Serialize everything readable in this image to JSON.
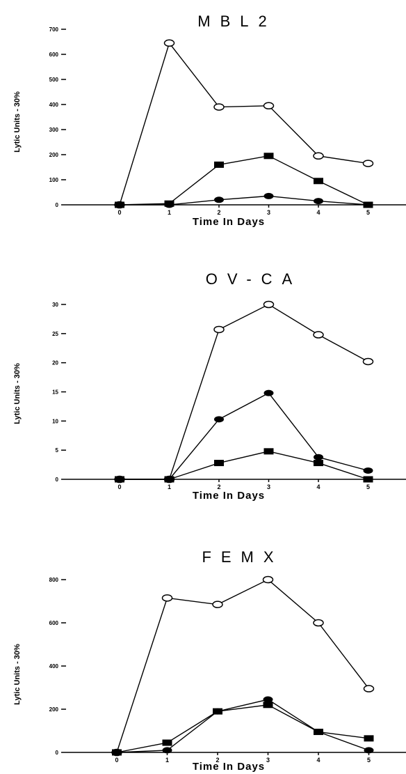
{
  "chart_data": [
    {
      "type": "line",
      "title": "MBL2",
      "xlabel": "Time In Days",
      "ylabel": "Lytic Units - 30%",
      "x": [
        0,
        1,
        2,
        3,
        4,
        5
      ],
      "ylim": [
        0,
        700
      ],
      "yticks": [
        0,
        100,
        200,
        300,
        400,
        500,
        600,
        700
      ],
      "grid": false,
      "series": [
        {
          "marker": "open-circle",
          "values": [
            0,
            645,
            390,
            395,
            195,
            165
          ]
        },
        {
          "marker": "filled-square",
          "values": [
            0,
            5,
            160,
            195,
            95,
            0
          ]
        },
        {
          "marker": "filled-circle",
          "values": [
            0,
            0,
            20,
            35,
            15,
            0
          ]
        }
      ]
    },
    {
      "type": "line",
      "title": "OV-CA",
      "xlabel": "Time In Days",
      "ylabel": "Lytic Units - 30%",
      "x": [
        0,
        1,
        2,
        3,
        4,
        5
      ],
      "ylim": [
        0,
        30
      ],
      "yticks": [
        0,
        5,
        10,
        15,
        20,
        25,
        30
      ],
      "grid": false,
      "series": [
        {
          "marker": "open-circle",
          "values": [
            0,
            0,
            25.7,
            30,
            24.8,
            20.2
          ]
        },
        {
          "marker": "filled-circle",
          "values": [
            0,
            0,
            10.3,
            14.8,
            3.8,
            1.5
          ]
        },
        {
          "marker": "filled-square",
          "values": [
            0,
            0,
            2.8,
            4.8,
            2.8,
            0
          ]
        }
      ]
    },
    {
      "type": "line",
      "title": "FEMX",
      "xlabel": "Time In Days",
      "ylabel": "Lytic Units - 30%",
      "x": [
        0,
        1,
        2,
        3,
        4,
        5
      ],
      "ylim": [
        0,
        800
      ],
      "yticks": [
        0,
        200,
        400,
        600,
        800
      ],
      "grid": false,
      "series": [
        {
          "marker": "open-circle",
          "values": [
            0,
            715,
            685,
            800,
            600,
            295
          ]
        },
        {
          "marker": "filled-circle",
          "values": [
            0,
            10,
            190,
            245,
            95,
            10
          ]
        },
        {
          "marker": "filled-square",
          "values": [
            0,
            45,
            190,
            220,
            95,
            65
          ]
        }
      ]
    }
  ]
}
